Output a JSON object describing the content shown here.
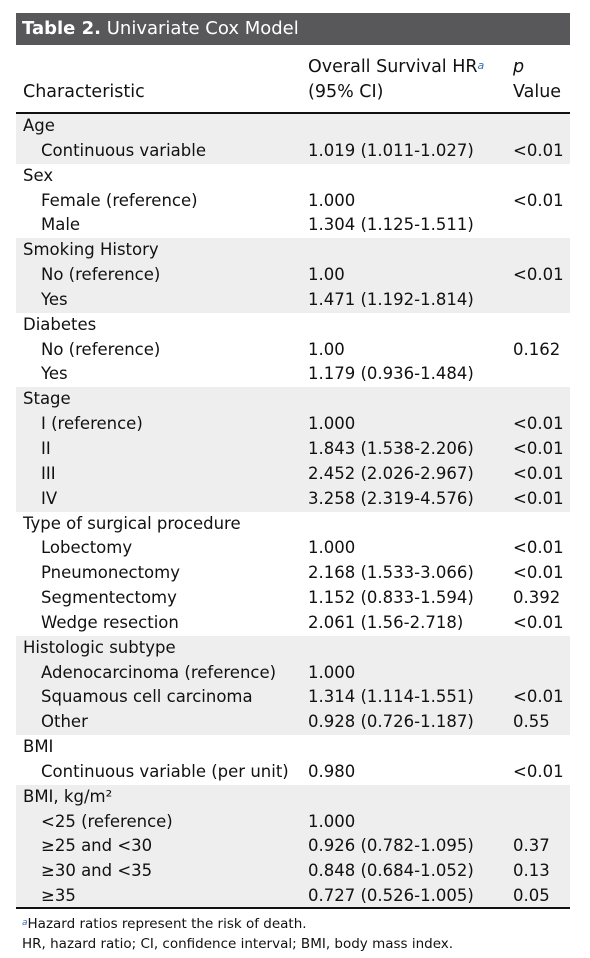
{
  "title": {
    "number": "Table 2.",
    "text": "Univariate Cox Model"
  },
  "columns": {
    "characteristic": "Characteristic",
    "hr_line1": "Overall Survival HR",
    "hr_marker": "a",
    "hr_line2": "(95% CI)",
    "p_line1": "p",
    "p_line2": "Value"
  },
  "groups": [
    {
      "label": "Age",
      "rows": [
        {
          "name": "Continuous variable",
          "hr": "1.019 (1.011-1.027)",
          "p": "<0.01"
        }
      ]
    },
    {
      "label": "Sex",
      "rows": [
        {
          "name": "Female (reference)",
          "hr": "1.000",
          "p": "<0.01"
        },
        {
          "name": "Male",
          "hr": "1.304 (1.125-1.511)",
          "p": ""
        }
      ]
    },
    {
      "label": "Smoking History",
      "rows": [
        {
          "name": "No (reference)",
          "hr": "1.00",
          "p": "<0.01"
        },
        {
          "name": "Yes",
          "hr": "1.471 (1.192-1.814)",
          "p": ""
        }
      ]
    },
    {
      "label": "Diabetes",
      "rows": [
        {
          "name": "No (reference)",
          "hr": "1.00",
          "p": "0.162"
        },
        {
          "name": "Yes",
          "hr": "1.179 (0.936-1.484)",
          "p": ""
        }
      ]
    },
    {
      "label": "Stage",
      "rows": [
        {
          "name": "I (reference)",
          "hr": "1.000",
          "p": "<0.01"
        },
        {
          "name": "II",
          "hr": "1.843 (1.538-2.206)",
          "p": "<0.01"
        },
        {
          "name": "III",
          "hr": "2.452 (2.026-2.967)",
          "p": "<0.01"
        },
        {
          "name": "IV",
          "hr": "3.258 (2.319-4.576)",
          "p": "<0.01"
        }
      ]
    },
    {
      "label": "Type of surgical procedure",
      "rows": [
        {
          "name": "Lobectomy",
          "hr": "1.000",
          "p": "<0.01"
        },
        {
          "name": "Pneumonectomy",
          "hr": "2.168 (1.533-3.066)",
          "p": "<0.01"
        },
        {
          "name": "Segmentectomy",
          "hr": "1.152 (0.833-1.594)",
          "p": "0.392"
        },
        {
          "name": "Wedge resection",
          "hr": "2.061 (1.56-2.718)",
          "p": "<0.01"
        }
      ]
    },
    {
      "label": "Histologic subtype",
      "rows": [
        {
          "name": "Adenocarcinoma (reference)",
          "hr": "1.000",
          "p": ""
        },
        {
          "name": "Squamous cell carcinoma",
          "hr": "1.314 (1.114-1.551)",
          "p": "<0.01"
        },
        {
          "name": "Other",
          "hr": "0.928 (0.726-1.187)",
          "p": "0.55"
        }
      ]
    },
    {
      "label": "BMI",
      "rows": [
        {
          "name": "Continuous variable (per unit)",
          "hr": "0.980",
          "p": "<0.01"
        }
      ]
    },
    {
      "label": "BMI, kg/m²",
      "rows": [
        {
          "name": "<25 (reference)",
          "hr": "1.000",
          "p": ""
        },
        {
          "name": "≥25 and <30",
          "hr": "0.926 (0.782-1.095)",
          "p": "0.37"
        },
        {
          "name": "≥30 and <35",
          "hr": "0.848 (0.684-1.052)",
          "p": "0.13"
        },
        {
          "name": "≥35",
          "hr": "0.727 (0.526-1.005)",
          "p": "0.05"
        }
      ]
    }
  ],
  "footnotes": {
    "marker": "a",
    "note_a": "Hazard ratios represent the risk of death.",
    "abbrev": "HR, hazard ratio; CI, confidence interval; BMI, body mass index."
  },
  "colors": {
    "title_bar": "#58585a",
    "shade": "#eeeeee",
    "footnote_marker": "#3a6fb8"
  }
}
